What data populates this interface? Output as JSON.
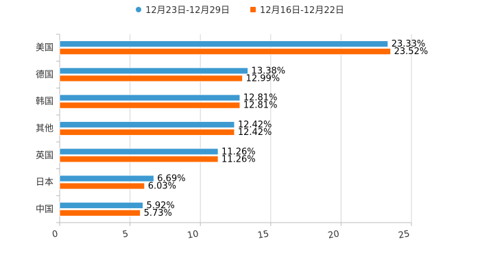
{
  "chart_data": {
    "type": "bar",
    "orientation": "horizontal",
    "categories": [
      "美国",
      "德国",
      "韩国",
      "其他",
      "英国",
      "日本",
      "中国"
    ],
    "series": [
      {
        "name": "12月23日-12月29日",
        "color": "#3d9ad1",
        "marker": "circle",
        "values": [
          23.33,
          13.38,
          12.81,
          12.42,
          11.26,
          6.69,
          5.92
        ],
        "labels": [
          "23.33%",
          "13.38%",
          "12.81%",
          "12.42%",
          "11.26%",
          "6.69%",
          "5.92%"
        ]
      },
      {
        "name": "12月16日-12月22日",
        "color": "#ff6a00",
        "marker": "square",
        "values": [
          23.52,
          12.99,
          12.81,
          12.42,
          11.26,
          6.03,
          5.73
        ],
        "labels": [
          "23.52%",
          "12.99%",
          "12.81%",
          "12.42%",
          "11.26%",
          "6.03%",
          "5.73%"
        ]
      }
    ],
    "xlim": [
      0,
      25
    ],
    "xticks": [
      0,
      5,
      10,
      15,
      20,
      25
    ],
    "xtick_labels": [
      "0",
      "5",
      "10",
      "15",
      "20",
      "25"
    ],
    "grid": true,
    "legend_position": "top-center"
  }
}
